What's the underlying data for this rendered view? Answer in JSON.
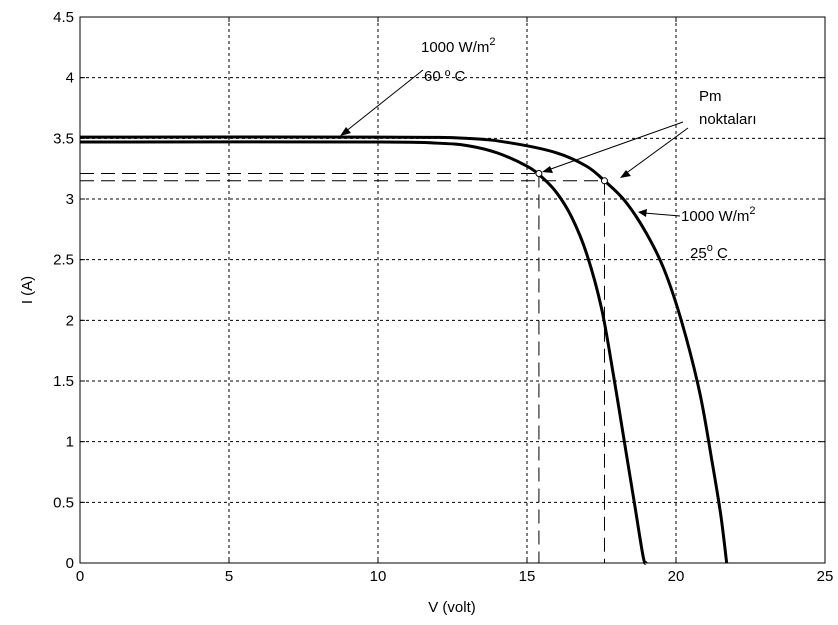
{
  "chart_data": {
    "type": "line",
    "xlabel": "V (volt)",
    "ylabel": "I (A)",
    "xlim": [
      0,
      25
    ],
    "ylim": [
      0,
      4.5
    ],
    "xticks": [
      0,
      5,
      10,
      15,
      20,
      25
    ],
    "xtick_labels": [
      "0",
      "5",
      "10",
      "15",
      "20",
      "25"
    ],
    "yticks": [
      0,
      0.5,
      1,
      1.5,
      2,
      2.5,
      3,
      3.5,
      4,
      4.5
    ],
    "ytick_labels": [
      "0",
      "0.5",
      "1",
      "1.5",
      "2",
      "2.5",
      "3",
      "3.5",
      "4",
      "4.5"
    ],
    "grid": true,
    "colors": {
      "line": "#000000",
      "background": "#ffffff"
    },
    "series": [
      {
        "x": [
          0,
          10,
          12,
          13,
          14,
          15,
          15.5,
          16,
          16.5,
          17,
          17.5,
          17.9,
          18.3,
          18.6,
          18.9,
          19.0
        ],
        "y": [
          3.47,
          3.47,
          3.46,
          3.44,
          3.38,
          3.27,
          3.18,
          3.05,
          2.85,
          2.55,
          2.1,
          1.55,
          0.95,
          0.5,
          0.05,
          0.0
        ]
      },
      {
        "x": [
          0,
          10,
          13,
          14.5,
          16,
          17,
          17.6,
          18.3,
          19,
          19.6,
          20.2,
          20.8,
          21.2,
          21.5,
          21.7
        ],
        "y": [
          3.51,
          3.51,
          3.5,
          3.46,
          3.38,
          3.27,
          3.15,
          2.98,
          2.72,
          2.42,
          1.98,
          1.4,
          0.85,
          0.4,
          0.0
        ]
      }
    ],
    "pm_points": [
      {
        "x": 15.4,
        "y": 3.21
      },
      {
        "x": 17.6,
        "y": 3.15
      }
    ],
    "annotations": {
      "hot_irradiance": "1000 W/m",
      "hot_irradiance_sup": "2",
      "hot_temp": "60 º C",
      "pm_line1": "Pm",
      "pm_line2": "noktaları",
      "cold_irradiance": "1000 W/m",
      "cold_irradiance_sup": "2",
      "cold_temp_value": "25",
      "cold_temp_sup": "o",
      "cold_temp_unit": " C"
    }
  }
}
